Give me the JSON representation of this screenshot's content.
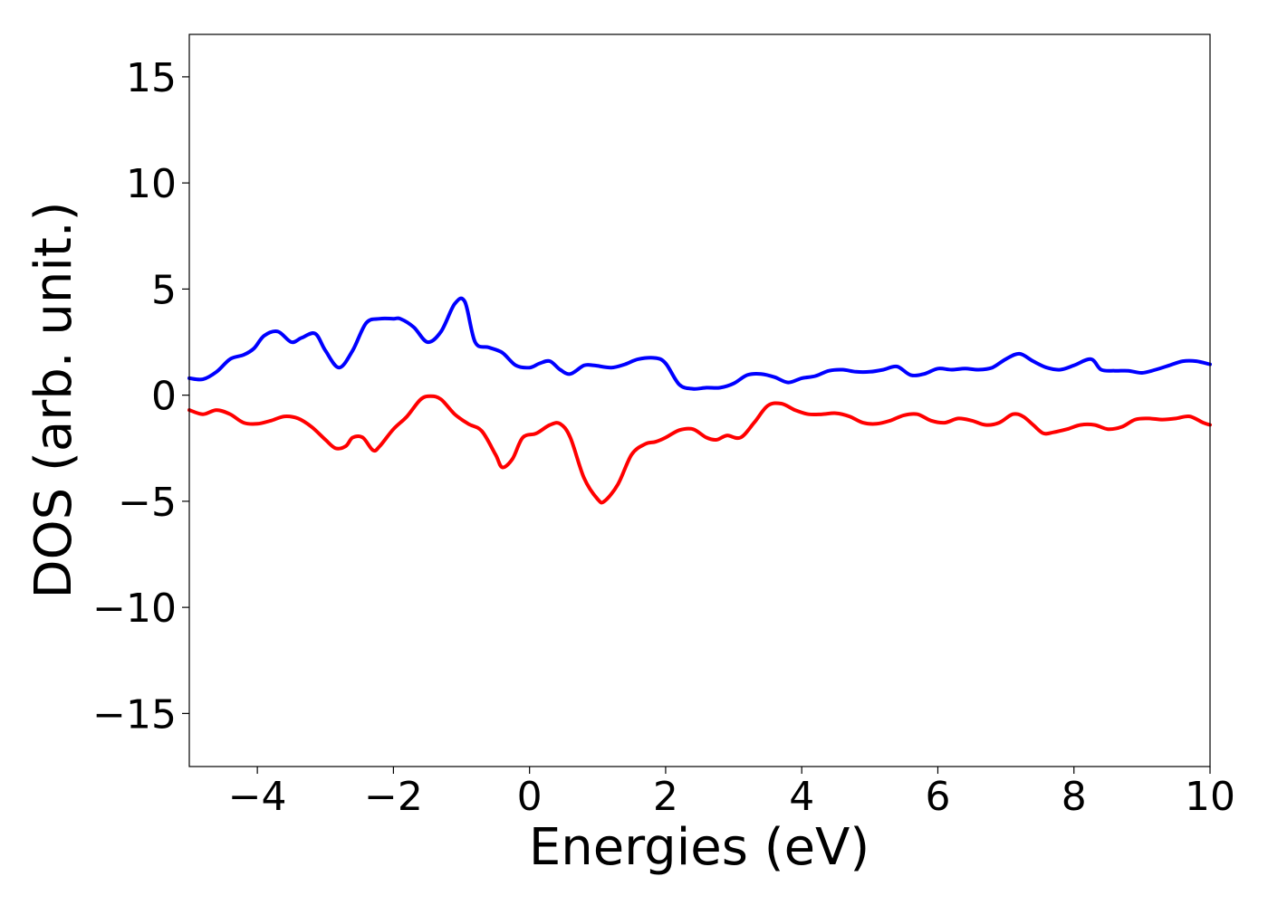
{
  "chart_data": {
    "type": "line",
    "title": "",
    "xlabel": "Energies (eV)",
    "ylabel": "DOS (arb. unit.)",
    "xlim": [
      -5,
      10
    ],
    "ylim": [
      -17.5,
      17
    ],
    "xticks": [
      -4,
      -2,
      0,
      2,
      4,
      6,
      8,
      10
    ],
    "xtick_labels": [
      "−4",
      "−2",
      "0",
      "2",
      "4",
      "6",
      "8",
      "10"
    ],
    "yticks": [
      -15,
      -10,
      -5,
      0,
      5,
      10,
      15
    ],
    "ytick_labels": [
      "−15",
      "−10",
      "−5",
      "0",
      "5",
      "10",
      "15"
    ],
    "grid": false,
    "legend": "none",
    "series": [
      {
        "color": "#0000ff",
        "x": [
          -5.0,
          -4.8,
          -4.6,
          -4.4,
          -4.2,
          -4.05,
          -3.9,
          -3.7,
          -3.5,
          -3.35,
          -3.15,
          -3.0,
          -2.8,
          -2.6,
          -2.4,
          -2.2,
          -2.0,
          -1.9,
          -1.7,
          -1.5,
          -1.3,
          -1.1,
          -0.95,
          -0.8,
          -0.6,
          -0.4,
          -0.2,
          0.0,
          0.15,
          0.3,
          0.45,
          0.6,
          0.8,
          0.95,
          1.2,
          1.4,
          1.6,
          1.85,
          2.0,
          2.2,
          2.4,
          2.6,
          2.8,
          3.0,
          3.2,
          3.4,
          3.6,
          3.8,
          4.0,
          4.2,
          4.4,
          4.6,
          4.8,
          5.0,
          5.2,
          5.4,
          5.6,
          5.8,
          6.0,
          6.2,
          6.4,
          6.6,
          6.8,
          7.0,
          7.2,
          7.4,
          7.6,
          7.8,
          8.0,
          8.25,
          8.4,
          8.6,
          8.8,
          9.0,
          9.2,
          9.4,
          9.6,
          9.8,
          10.0
        ],
        "y": [
          0.8,
          0.75,
          1.1,
          1.7,
          1.9,
          2.2,
          2.8,
          3.0,
          2.5,
          2.7,
          2.9,
          2.1,
          1.3,
          2.1,
          3.4,
          3.6,
          3.6,
          3.6,
          3.2,
          2.5,
          3.0,
          4.3,
          4.4,
          2.5,
          2.25,
          2.0,
          1.4,
          1.3,
          1.5,
          1.6,
          1.2,
          1.0,
          1.4,
          1.4,
          1.3,
          1.45,
          1.7,
          1.75,
          1.5,
          0.5,
          0.3,
          0.35,
          0.35,
          0.55,
          0.95,
          1.0,
          0.85,
          0.6,
          0.8,
          0.9,
          1.15,
          1.2,
          1.1,
          1.1,
          1.2,
          1.35,
          0.95,
          1.0,
          1.25,
          1.2,
          1.25,
          1.2,
          1.3,
          1.7,
          1.95,
          1.6,
          1.3,
          1.2,
          1.4,
          1.7,
          1.2,
          1.15,
          1.15,
          1.05,
          1.2,
          1.4,
          1.6,
          1.6,
          1.45
        ]
      },
      {
        "color": "#ff0000",
        "x": [
          -5.0,
          -4.8,
          -4.6,
          -4.4,
          -4.2,
          -4.0,
          -3.8,
          -3.6,
          -3.4,
          -3.2,
          -3.0,
          -2.85,
          -2.7,
          -2.6,
          -2.45,
          -2.3,
          -2.2,
          -2.0,
          -1.8,
          -1.6,
          -1.45,
          -1.3,
          -1.1,
          -0.9,
          -0.7,
          -0.5,
          -0.4,
          -0.25,
          -0.1,
          0.1,
          0.3,
          0.45,
          0.6,
          0.8,
          1.0,
          1.1,
          1.3,
          1.5,
          1.7,
          1.85,
          2.0,
          2.2,
          2.4,
          2.6,
          2.75,
          2.9,
          3.1,
          3.3,
          3.5,
          3.7,
          3.9,
          4.1,
          4.3,
          4.5,
          4.7,
          4.9,
          5.1,
          5.3,
          5.5,
          5.7,
          5.9,
          6.1,
          6.3,
          6.5,
          6.7,
          6.9,
          7.1,
          7.25,
          7.4,
          7.55,
          7.7,
          7.9,
          8.1,
          8.3,
          8.5,
          8.7,
          8.9,
          9.1,
          9.3,
          9.5,
          9.7,
          9.9,
          10.0
        ],
        "y": [
          -0.7,
          -0.9,
          -0.7,
          -0.9,
          -1.3,
          -1.35,
          -1.2,
          -1.0,
          -1.1,
          -1.5,
          -2.1,
          -2.5,
          -2.4,
          -2.0,
          -2.0,
          -2.6,
          -2.4,
          -1.6,
          -1.0,
          -0.2,
          -0.05,
          -0.2,
          -0.9,
          -1.35,
          -1.7,
          -2.8,
          -3.4,
          -3.0,
          -2.0,
          -1.8,
          -1.4,
          -1.35,
          -2.0,
          -3.9,
          -4.9,
          -5.0,
          -4.2,
          -2.8,
          -2.3,
          -2.2,
          -2.0,
          -1.65,
          -1.6,
          -2.0,
          -2.1,
          -1.9,
          -2.0,
          -1.3,
          -0.5,
          -0.4,
          -0.7,
          -0.9,
          -0.9,
          -0.85,
          -1.0,
          -1.3,
          -1.35,
          -1.2,
          -0.95,
          -0.9,
          -1.2,
          -1.3,
          -1.1,
          -1.2,
          -1.4,
          -1.3,
          -0.9,
          -1.0,
          -1.4,
          -1.8,
          -1.75,
          -1.6,
          -1.4,
          -1.4,
          -1.6,
          -1.5,
          -1.15,
          -1.1,
          -1.15,
          -1.1,
          -1.0,
          -1.3,
          -1.4
        ]
      }
    ]
  }
}
